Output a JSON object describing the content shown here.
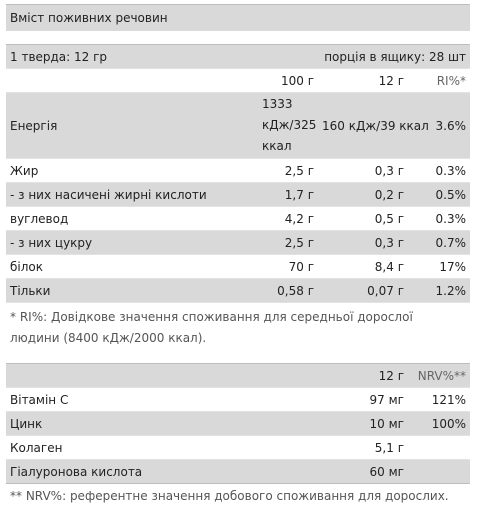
{
  "title": "Вміст поживних речовин",
  "serving": {
    "size_label": "1 тверда: 12 гр",
    "per_pack_label": "порція в ящику: 28 шт"
  },
  "nutrition": {
    "headers": [
      "",
      "100 г",
      "12 г",
      "RI%*"
    ],
    "rows": [
      {
        "name": "Енергія",
        "per100": "1333 кДж/325",
        "perServing": "160 кДж/39 ккал",
        "ri": "3.6%",
        "shaded": true
      },
      {
        "name": "Жир",
        "per100": "2,5 г",
        "perServing": "0,3 г",
        "ri": "0.3%",
        "shaded": false
      },
      {
        "name": "- з них насичені жирні кислоти",
        "per100": "1,7 г",
        "perServing": "0,2 г",
        "ri": "0.5%",
        "shaded": true
      },
      {
        "name": "вуглевод",
        "per100": "4,2 г",
        "perServing": "0,5 г",
        "ri": "0.3%",
        "shaded": false
      },
      {
        "name": "- з них цукру",
        "per100": "2,5 г",
        "perServing": "0,3 г",
        "ri": "0.7%",
        "shaded": true
      },
      {
        "name": "білок",
        "per100": "70 г",
        "perServing": "8,4 г",
        "ri": "17%",
        "shaded": false
      },
      {
        "name": "Тільки",
        "per100": "0,58 г",
        "perServing": "0,07 г",
        "ri": "1.2%",
        "shaded": true
      }
    ],
    "energy_unit": "ккал",
    "footnote": "* RI%: Довідкове значення споживання для середньої дорослої людини (8400 кДж/2000 ккал)."
  },
  "vitamins": {
    "headers": [
      "",
      "12 г",
      "NRV%**"
    ],
    "rows": [
      {
        "name": "Вітамін C",
        "amount": "97 мг",
        "nrv": "121%",
        "shaded": false
      },
      {
        "name": "Цинк",
        "amount": "10 мг",
        "nrv": "100%",
        "shaded": true
      },
      {
        "name": "Колаген",
        "amount": "5,1 г",
        "nrv": "",
        "shaded": false
      },
      {
        "name": "Гіалуронова кислота",
        "amount": "60 мг",
        "nrv": "",
        "shaded": true
      }
    ],
    "footnote": "** NRV%: референтне значення добового споживання для дорослих."
  }
}
